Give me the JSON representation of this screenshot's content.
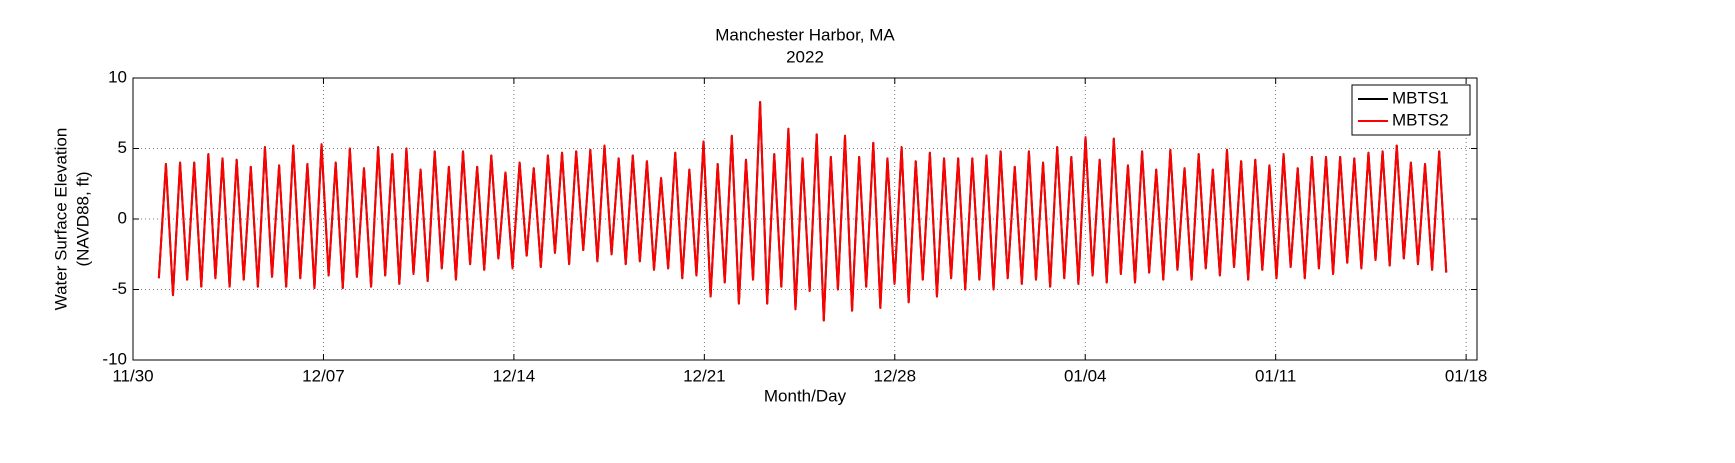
{
  "chart_data": {
    "type": "line",
    "title": "Manchester Harbor, MA",
    "subtitle": "2022",
    "xlabel": "Month/Day",
    "ylabel": [
      "Water Surface Elevation",
      "(NAVD88, ft)"
    ],
    "xlim": [
      0,
      49.4
    ],
    "xticks": [
      {
        "value": 0,
        "label": "11/30"
      },
      {
        "value": 7,
        "label": "12/07"
      },
      {
        "value": 14,
        "label": "12/14"
      },
      {
        "value": 21,
        "label": "12/21"
      },
      {
        "value": 28,
        "label": "12/28"
      },
      {
        "value": 35,
        "label": "01/04"
      },
      {
        "value": 42,
        "label": "01/11"
      },
      {
        "value": 49,
        "label": "01/18"
      }
    ],
    "ylim": [
      -10,
      10
    ],
    "yticks": [
      -10,
      -5,
      0,
      5,
      10
    ],
    "grid": true,
    "legend": "upper-right",
    "x": [
      0.95,
      1.21,
      1.47,
      1.73,
      1.99,
      2.25,
      2.51,
      2.77,
      3.03,
      3.29,
      3.55,
      3.81,
      4.07,
      4.33,
      4.59,
      4.85,
      5.11,
      5.37,
      5.63,
      5.89,
      6.15,
      6.41,
      6.67,
      6.93,
      7.19,
      7.45,
      7.71,
      7.97,
      8.23,
      8.49,
      8.75,
      9.01,
      9.27,
      9.53,
      9.79,
      10.05,
      10.31,
      10.57,
      10.83,
      11.09,
      11.35,
      11.61,
      11.87,
      12.13,
      12.39,
      12.65,
      12.91,
      13.17,
      13.43,
      13.69,
      13.95,
      14.21,
      14.47,
      14.73,
      14.99,
      15.25,
      15.51,
      15.77,
      16.03,
      16.29,
      16.55,
      16.81,
      17.07,
      17.33,
      17.59,
      17.85,
      18.11,
      18.37,
      18.63,
      18.89,
      19.15,
      19.41,
      19.67,
      19.93,
      20.19,
      20.45,
      20.71,
      20.97,
      21.23,
      21.49,
      21.75,
      22.01,
      22.27,
      22.53,
      22.79,
      23.05,
      23.31,
      23.57,
      23.83,
      24.09,
      24.35,
      24.61,
      24.87,
      25.13,
      25.39,
      25.65,
      25.91,
      26.17,
      26.43,
      26.69,
      26.95,
      27.21,
      27.47,
      27.73,
      27.99,
      28.25,
      28.51,
      28.77,
      29.03,
      29.29,
      29.55,
      29.81,
      30.07,
      30.33,
      30.59,
      30.85,
      31.11,
      31.37,
      31.63,
      31.89,
      32.15,
      32.41,
      32.67,
      32.93,
      33.19,
      33.45,
      33.71,
      33.97,
      34.23,
      34.49,
      34.75,
      35.01,
      35.27,
      35.53,
      35.79,
      36.05,
      36.31,
      36.57,
      36.83,
      37.09,
      37.35,
      37.61,
      37.87,
      38.13,
      38.39,
      38.65,
      38.91,
      39.17,
      39.43,
      39.69,
      39.95,
      40.21,
      40.47,
      40.73,
      40.99,
      41.25,
      41.51,
      41.77,
      42.03,
      42.29,
      42.55,
      42.81,
      43.07,
      43.33,
      43.59,
      43.85,
      44.11,
      44.37,
      44.63,
      44.89,
      45.15,
      45.41,
      45.67,
      45.93,
      46.19,
      46.45,
      46.71,
      46.97,
      47.23,
      47.49,
      47.75,
      48.01,
      48.27
    ],
    "series": [
      {
        "name": "MBTS1",
        "color": "#000000",
        "values": [
          -4.2,
          3.9,
          -5.4,
          4.0,
          -4.3,
          4.0,
          -4.8,
          4.6,
          -4.2,
          4.3,
          -4.8,
          4.2,
          -4.3,
          3.7,
          -4.8,
          5.1,
          -4.1,
          3.8,
          -4.8,
          5.2,
          -4.2,
          3.9,
          -4.9,
          5.3,
          -4.0,
          4.0,
          -4.9,
          5.0,
          -4.1,
          3.6,
          -4.8,
          5.1,
          -4.0,
          4.6,
          -4.6,
          5.0,
          -3.9,
          3.5,
          -4.4,
          4.8,
          -3.5,
          3.7,
          -4.3,
          4.8,
          -3.2,
          3.7,
          -3.6,
          4.5,
          -2.8,
          3.3,
          -3.5,
          4.0,
          -2.6,
          3.6,
          -3.4,
          4.5,
          -2.4,
          4.7,
          -3.2,
          4.8,
          -2.2,
          4.9,
          -3.0,
          5.2,
          -2.5,
          4.3,
          -3.2,
          4.5,
          -3.0,
          4.1,
          -3.6,
          2.9,
          -3.5,
          4.7,
          -4.2,
          3.5,
          -4.0,
          5.5,
          -5.5,
          3.9,
          -4.5,
          5.9,
          -6.0,
          4.2,
          -4.3,
          8.3,
          -6.0,
          4.6,
          -4.8,
          6.4,
          -6.4,
          4.3,
          -5.1,
          6.0,
          -7.2,
          4.4,
          -5.0,
          5.9,
          -6.5,
          4.4,
          -4.8,
          5.4,
          -6.3,
          4.3,
          -4.6,
          5.1,
          -5.9,
          4.1,
          -4.3,
          4.7,
          -5.5,
          4.3,
          -4.2,
          4.3,
          -5.0,
          4.3,
          -4.3,
          4.5,
          -5.0,
          4.8,
          -4.2,
          3.7,
          -4.6,
          4.8,
          -4.3,
          4.0,
          -4.8,
          5.1,
          -4.2,
          4.4,
          -4.6,
          5.8,
          -4.0,
          4.2,
          -4.5,
          5.7,
          -3.9,
          3.8,
          -4.5,
          4.8,
          -3.8,
          3.5,
          -4.3,
          4.9,
          -3.6,
          3.6,
          -4.3,
          4.6,
          -3.5,
          3.5,
          -4.0,
          4.9,
          -3.4,
          4.1,
          -4.3,
          4.2,
          -3.6,
          3.8,
          -4.2,
          4.6,
          -3.4,
          3.6,
          -4.2,
          4.4,
          -3.5,
          4.4,
          -3.9,
          4.4,
          -3.1,
          4.3,
          -3.5,
          4.7,
          -2.9,
          4.8,
          -3.3,
          5.2,
          -2.8,
          4.0,
          -3.2,
          3.9,
          -3.6,
          4.8,
          -3.8
        ]
      },
      {
        "name": "MBTS2",
        "color": "#ff0000",
        "values": [
          -4.2,
          3.9,
          -5.4,
          4.0,
          -4.3,
          4.0,
          -4.8,
          4.6,
          -4.2,
          4.3,
          -4.8,
          4.2,
          -4.3,
          3.7,
          -4.8,
          5.1,
          -4.1,
          3.8,
          -4.8,
          5.2,
          -4.2,
          3.9,
          -4.9,
          5.3,
          -4.0,
          4.0,
          -4.9,
          5.0,
          -4.1,
          3.6,
          -4.8,
          5.1,
          -4.0,
          4.6,
          -4.6,
          5.0,
          -3.9,
          3.5,
          -4.4,
          4.8,
          -3.5,
          3.7,
          -4.3,
          4.8,
          -3.2,
          3.7,
          -3.6,
          4.5,
          -2.8,
          3.3,
          -3.5,
          4.0,
          -2.6,
          3.6,
          -3.4,
          4.5,
          -2.4,
          4.7,
          -3.2,
          4.8,
          -2.2,
          4.9,
          -3.0,
          5.2,
          -2.5,
          4.3,
          -3.2,
          4.5,
          -3.0,
          4.1,
          -3.6,
          2.9,
          -3.5,
          4.7,
          -4.2,
          3.5,
          -4.0,
          5.5,
          -5.5,
          3.9,
          -4.5,
          5.9,
          -6.0,
          4.2,
          -4.3,
          8.3,
          -6.0,
          4.6,
          -4.8,
          6.4,
          -6.4,
          4.3,
          -5.1,
          6.0,
          -7.2,
          4.4,
          -5.0,
          5.9,
          -6.5,
          4.4,
          -4.8,
          5.4,
          -6.3,
          4.3,
          -4.6,
          5.1,
          -5.9,
          4.1,
          -4.3,
          4.7,
          -5.5,
          4.3,
          -4.2,
          4.3,
          -5.0,
          4.3,
          -4.3,
          4.5,
          -5.0,
          4.8,
          -4.2,
          3.7,
          -4.6,
          4.8,
          -4.3,
          4.0,
          -4.8,
          5.1,
          -4.2,
          4.4,
          -4.6,
          5.8,
          -4.0,
          4.2,
          -4.5,
          5.7,
          -3.9,
          3.8,
          -4.5,
          4.8,
          -3.8,
          3.5,
          -4.3,
          4.9,
          -3.6,
          3.6,
          -4.3,
          4.6,
          -3.5,
          3.5,
          -4.0,
          4.9,
          -3.4,
          4.1,
          -4.3,
          4.2,
          -3.6,
          3.8,
          -4.2,
          4.6,
          -3.4,
          3.6,
          -4.2,
          4.4,
          -3.5,
          4.4,
          -3.9,
          4.4,
          -3.1,
          4.3,
          -3.5,
          4.7,
          -2.9,
          4.8,
          -3.3,
          5.2,
          -2.8,
          4.0,
          -3.2,
          3.9,
          -3.6,
          4.8,
          -3.8
        ]
      }
    ]
  }
}
